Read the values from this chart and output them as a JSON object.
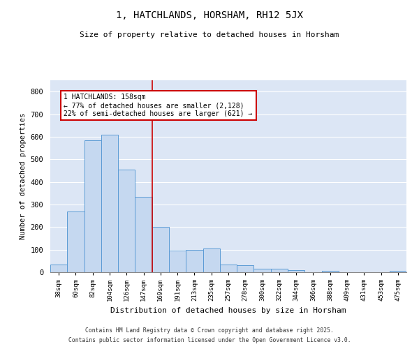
{
  "title": "1, HATCHLANDS, HORSHAM, RH12 5JX",
  "subtitle": "Size of property relative to detached houses in Horsham",
  "xlabel": "Distribution of detached houses by size in Horsham",
  "ylabel": "Number of detached properties",
  "bar_labels": [
    "38sqm",
    "60sqm",
    "82sqm",
    "104sqm",
    "126sqm",
    "147sqm",
    "169sqm",
    "191sqm",
    "213sqm",
    "235sqm",
    "257sqm",
    "278sqm",
    "300sqm",
    "322sqm",
    "344sqm",
    "366sqm",
    "388sqm",
    "409sqm",
    "431sqm",
    "453sqm",
    "475sqm"
  ],
  "bar_heights": [
    35,
    270,
    585,
    610,
    455,
    335,
    200,
    95,
    100,
    105,
    35,
    32,
    15,
    15,
    10,
    0,
    5,
    0,
    0,
    0,
    7
  ],
  "bar_color": "#c5d8f0",
  "bar_edge_color": "#5b9bd5",
  "background_color": "#dce6f5",
  "grid_color": "#ffffff",
  "vline_x_index": 5.5,
  "vline_color": "#cc0000",
  "annotation_text": "1 HATCHLANDS: 158sqm\n← 77% of detached houses are smaller (2,128)\n22% of semi-detached houses are larger (621) →",
  "annotation_box_color": "#cc0000",
  "ylim": [
    0,
    850
  ],
  "yticks": [
    0,
    100,
    200,
    300,
    400,
    500,
    600,
    700,
    800
  ],
  "footer_line1": "Contains HM Land Registry data © Crown copyright and database right 2025.",
  "footer_line2": "Contains public sector information licensed under the Open Government Licence v3.0."
}
